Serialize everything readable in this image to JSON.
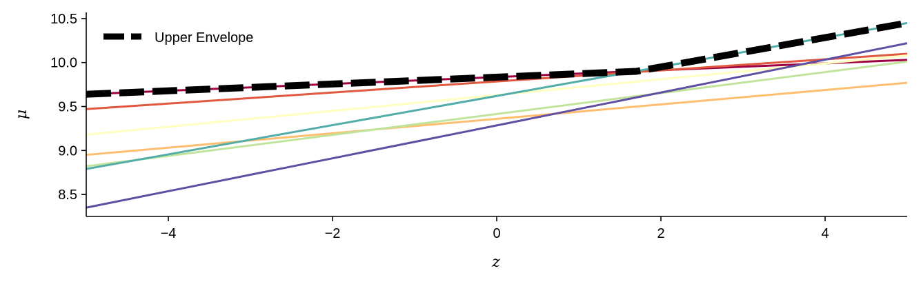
{
  "chart_data": {
    "type": "line",
    "title": "",
    "xlabel": "z",
    "ylabel": "μ",
    "xlim": [
      -5,
      5
    ],
    "ylim": [
      8.25,
      10.57
    ],
    "x_ticks": [
      -4,
      -2,
      0,
      2,
      4
    ],
    "x_tick_labels": [
      "−4",
      "−2",
      "0",
      "2",
      "4"
    ],
    "y_ticks": [
      8.5,
      9.0,
      9.5,
      10.0,
      10.5
    ],
    "y_tick_labels": [
      "8.5",
      "9.0",
      "9.5",
      "10.0",
      "10.5"
    ],
    "grid": false,
    "legend": {
      "position": "top-left",
      "entries": [
        "Upper Envelope"
      ]
    },
    "series": [
      {
        "color": "#9e0142",
        "x": [
          -5,
          5
        ],
        "y": [
          9.64,
          10.03
        ]
      },
      {
        "color": "#e0583f",
        "x": [
          -5,
          5
        ],
        "y": [
          9.47,
          10.1
        ]
      },
      {
        "color": "#fdbf6f",
        "x": [
          -5,
          5
        ],
        "y": [
          8.95,
          9.77
        ]
      },
      {
        "color": "#ffffbf",
        "x": [
          -5,
          5
        ],
        "y": [
          9.18,
          10.08
        ]
      },
      {
        "color": "#c1e49d",
        "x": [
          -5,
          5
        ],
        "y": [
          8.82,
          10.01
        ]
      },
      {
        "color": "#52ada8",
        "x": [
          -5,
          5
        ],
        "y": [
          8.79,
          10.45
        ]
      },
      {
        "color": "#5e4fa2",
        "x": [
          -5,
          5
        ],
        "y": [
          8.35,
          10.22
        ]
      },
      {
        "name": "Upper Envelope",
        "color": "#000000",
        "dashed": true,
        "x": [
          -5,
          1.7,
          5
        ],
        "y": [
          9.64,
          9.9,
          10.45
        ]
      }
    ]
  }
}
